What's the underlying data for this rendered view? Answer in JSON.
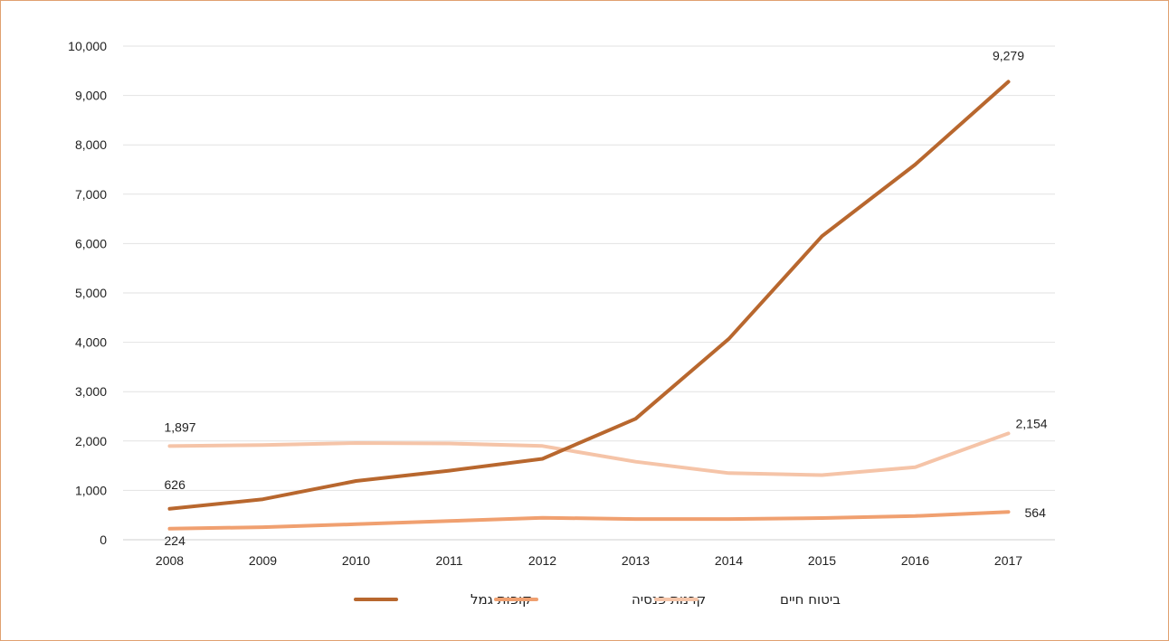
{
  "chart_data": {
    "type": "line",
    "title": "",
    "xlabel": "",
    "ylabel": "",
    "categories": [
      "2008",
      "2009",
      "2010",
      "2011",
      "2012",
      "2013",
      "2014",
      "2015",
      "2016",
      "2017"
    ],
    "ylim": [
      0,
      10000
    ],
    "yticks": [
      0,
      1000,
      2000,
      3000,
      4000,
      5000,
      6000,
      7000,
      8000,
      9000,
      10000
    ],
    "ytick_labels": [
      "0",
      "1,000",
      "2,000",
      "3,000",
      "4,000",
      "5,000",
      "6,000",
      "7,000",
      "8,000",
      "9,000",
      "10,000"
    ],
    "grid": true,
    "legend_position": "bottom",
    "series": [
      {
        "name": "קופות גמל",
        "color": "#b8672e",
        "values": [
          626,
          820,
          1190,
          1400,
          1640,
          2450,
          4070,
          6150,
          7600,
          9279
        ]
      },
      {
        "name": "קרנות פנסיה",
        "color": "#f0a070",
        "values": [
          224,
          255,
          315,
          380,
          445,
          420,
          420,
          440,
          480,
          564
        ]
      },
      {
        "name": "ביטוח חיים",
        "color": "#f5c4a8",
        "values": [
          1897,
          1920,
          1960,
          1950,
          1900,
          1580,
          1350,
          1310,
          1470,
          2154
        ]
      }
    ],
    "annotations": [
      {
        "series": 0,
        "index": 0,
        "text": "626"
      },
      {
        "series": 0,
        "index": 9,
        "text": "9,279"
      },
      {
        "series": 1,
        "index": 0,
        "text": "224"
      },
      {
        "series": 1,
        "index": 9,
        "text": "564"
      },
      {
        "series": 2,
        "index": 0,
        "text": "1,897"
      },
      {
        "series": 2,
        "index": 9,
        "text": "2,154"
      }
    ]
  }
}
